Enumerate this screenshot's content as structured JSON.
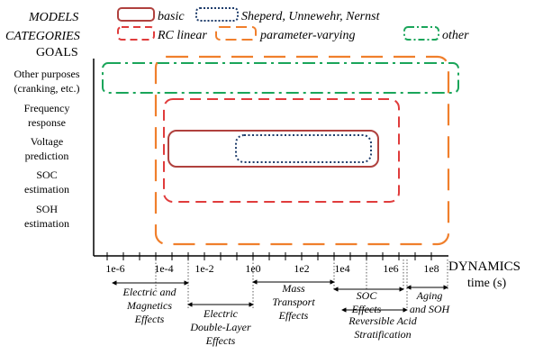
{
  "legend": {
    "models_label": "MODELS",
    "categories_label": "CATEGORIES",
    "items": [
      {
        "label": "basic",
        "color": "#b0413e",
        "style": "solid"
      },
      {
        "label": "Sheperd, Unnewehr, Nernst",
        "color": "#1f3d6b",
        "style": "dotted"
      },
      {
        "label": "RC linear",
        "color": "#e03c3c",
        "style": "dashed"
      },
      {
        "label": "parameter-varying",
        "color": "#f07f2c",
        "style": "long-dashed"
      },
      {
        "label": "other",
        "color": "#1aa55a",
        "style": "dash-dot"
      }
    ]
  },
  "axes": {
    "y_title": "GOALS",
    "x_title_line1": "DYNAMICS",
    "x_title_line2": "time (s)"
  },
  "goals": [
    {
      "lines": [
        "Other purposes",
        "(cranking, etc.)"
      ]
    },
    {
      "lines": [
        "Frequency",
        "response"
      ]
    },
    {
      "lines": [
        "Voltage",
        "prediction"
      ]
    },
    {
      "lines": [
        "SOC",
        "estimation"
      ]
    },
    {
      "lines": [
        "SOH",
        "estimation"
      ]
    }
  ],
  "ticks": [
    "1e-6",
    "1e-4",
    "1e-2",
    "1e0",
    "1e2",
    "1e4",
    "1e6",
    "1e8"
  ],
  "effects": [
    {
      "lines": [
        "Electric and",
        "Magnetics",
        "Effects"
      ]
    },
    {
      "lines": [
        "Electric",
        "Double-Layer",
        "Effects"
      ]
    },
    {
      "lines": [
        "Mass",
        "Transport",
        "Effects"
      ]
    },
    {
      "lines": [
        "SOC",
        "Effects"
      ]
    },
    {
      "lines": [
        "Aging",
        "and SOH"
      ]
    },
    {
      "lines": [
        "Reversible Acid",
        "Stratification"
      ]
    }
  ]
}
